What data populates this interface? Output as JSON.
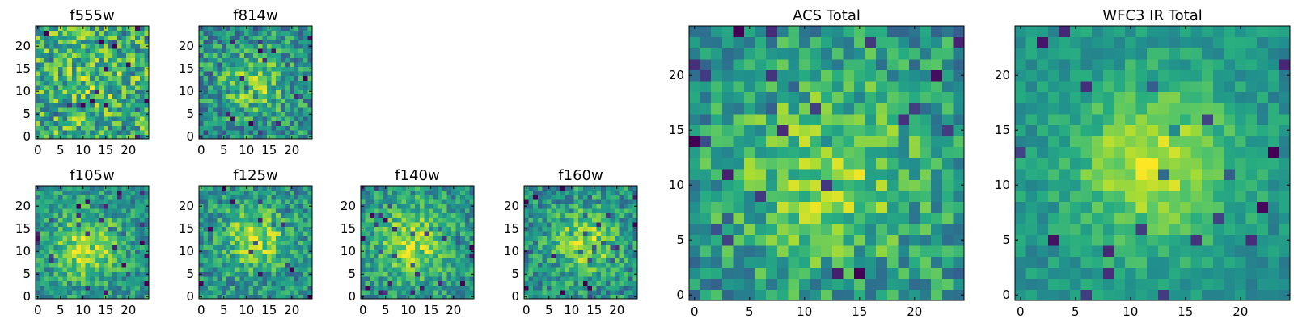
{
  "chart_data": [
    {
      "type": "heatmap",
      "title": "f555w",
      "grid_size": 25,
      "xlim": [
        -0.5,
        24.5
      ],
      "ylim": [
        -0.5,
        24.5
      ],
      "x_ticks": [
        0,
        5,
        10,
        15,
        20
      ],
      "y_ticks": [
        0,
        5,
        10,
        15,
        20
      ],
      "origin": "lower",
      "colormap": "viridis",
      "blob": {
        "center": [
          12,
          11
        ],
        "sigma": 6,
        "amplitude": 0.1,
        "base": 0.62,
        "noise": 0.3
      },
      "seed": 11
    },
    {
      "type": "heatmap",
      "title": "f814w",
      "grid_size": 25,
      "xlim": [
        -0.5,
        24.5
      ],
      "ylim": [
        -0.5,
        24.5
      ],
      "x_ticks": [
        0,
        5,
        10,
        15,
        20
      ],
      "y_ticks": [
        0,
        5,
        10,
        15,
        20
      ],
      "origin": "lower",
      "colormap": "viridis",
      "blob": {
        "center": [
          12,
          12
        ],
        "sigma": 5,
        "amplitude": 0.28,
        "base": 0.5,
        "noise": 0.25
      },
      "seed": 23
    },
    {
      "type": "heatmap",
      "title": "f105w",
      "grid_size": 25,
      "xlim": [
        -0.5,
        24.5
      ],
      "ylim": [
        -0.5,
        24.5
      ],
      "x_ticks": [
        0,
        5,
        10,
        15,
        20
      ],
      "y_ticks": [
        0,
        5,
        10,
        15,
        20
      ],
      "origin": "lower",
      "colormap": "viridis",
      "blob": {
        "center": [
          11,
          11
        ],
        "sigma": 5,
        "amplitude": 0.38,
        "base": 0.52,
        "noise": 0.2
      },
      "seed": 37
    },
    {
      "type": "heatmap",
      "title": "f125w",
      "grid_size": 25,
      "xlim": [
        -0.5,
        24.5
      ],
      "ylim": [
        -0.5,
        24.5
      ],
      "x_ticks": [
        0,
        5,
        10,
        15,
        20
      ],
      "y_ticks": [
        0,
        5,
        10,
        15,
        20
      ],
      "origin": "lower",
      "colormap": "viridis",
      "blob": {
        "center": [
          12,
          13
        ],
        "sigma": 5,
        "amplitude": 0.36,
        "base": 0.5,
        "noise": 0.22
      },
      "seed": 41
    },
    {
      "type": "heatmap",
      "title": "f140w",
      "grid_size": 25,
      "xlim": [
        -0.5,
        24.5
      ],
      "ylim": [
        -0.5,
        24.5
      ],
      "x_ticks": [
        0,
        5,
        10,
        15,
        20
      ],
      "y_ticks": [
        0,
        5,
        10,
        15,
        20
      ],
      "origin": "lower",
      "colormap": "viridis",
      "blob": {
        "center": [
          11,
          12
        ],
        "sigma": 5.5,
        "amplitude": 0.36,
        "base": 0.52,
        "noise": 0.2
      },
      "seed": 53
    },
    {
      "type": "heatmap",
      "title": "f160w",
      "grid_size": 25,
      "xlim": [
        -0.5,
        24.5
      ],
      "ylim": [
        -0.5,
        24.5
      ],
      "x_ticks": [
        0,
        5,
        10,
        15,
        20
      ],
      "y_ticks": [
        0,
        5,
        10,
        15,
        20
      ],
      "origin": "lower",
      "colormap": "viridis",
      "blob": {
        "center": [
          13,
          12
        ],
        "sigma": 5,
        "amplitude": 0.36,
        "base": 0.5,
        "noise": 0.22
      },
      "seed": 67
    },
    {
      "type": "heatmap",
      "title": "ACS Total",
      "grid_size": 25,
      "xlim": [
        -0.5,
        24.5
      ],
      "ylim": [
        -0.5,
        24.5
      ],
      "x_ticks": [
        0,
        5,
        10,
        15,
        20
      ],
      "y_ticks": [
        0,
        5,
        10,
        15,
        20
      ],
      "origin": "lower",
      "colormap": "viridis",
      "blob": {
        "center": [
          12,
          11
        ],
        "sigma": 6,
        "amplitude": 0.28,
        "base": 0.52,
        "noise": 0.22
      },
      "seed": 79
    },
    {
      "type": "heatmap",
      "title": "WFC3 IR Total",
      "grid_size": 25,
      "xlim": [
        -0.5,
        24.5
      ],
      "ylim": [
        -0.5,
        24.5
      ],
      "x_ticks": [
        0,
        5,
        10,
        15,
        20
      ],
      "y_ticks": [
        0,
        5,
        10,
        15,
        20
      ],
      "origin": "lower",
      "colormap": "viridis",
      "blob": {
        "center": [
          12,
          12
        ],
        "sigma": 5,
        "amplitude": 0.4,
        "base": 0.52,
        "noise": 0.12
      },
      "seed": 97
    }
  ]
}
